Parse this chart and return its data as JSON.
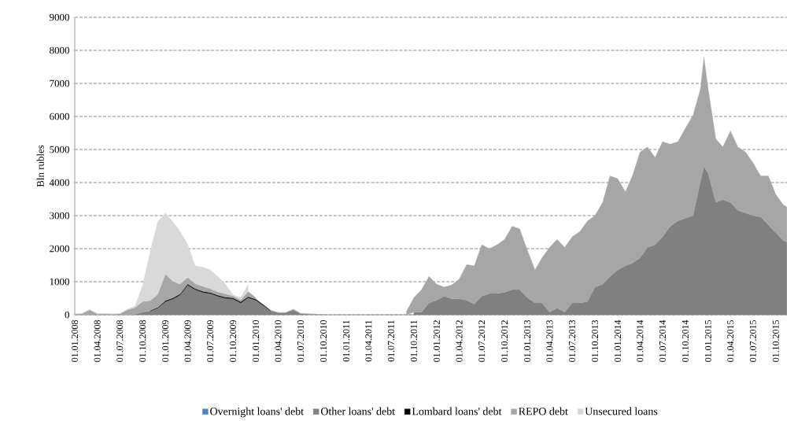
{
  "chart_data": {
    "type": "area",
    "stacked": true,
    "ylabel": "Bln rubles",
    "legend": "bottom",
    "grid": "y",
    "x": [
      "2008-01-01",
      "2008-02-01",
      "2008-03-01",
      "2008-04-01",
      "2008-05-01",
      "2008-06-01",
      "2008-07-01",
      "2008-08-01",
      "2008-09-01",
      "2008-10-01",
      "2008-11-01",
      "2008-12-01",
      "2009-01-01",
      "2009-02-01",
      "2009-03-01",
      "2009-04-01",
      "2009-05-01",
      "2009-06-01",
      "2009-07-01",
      "2009-08-01",
      "2009-09-01",
      "2009-10-01",
      "2009-11-01",
      "2009-12-01",
      "2010-01-01",
      "2010-02-01",
      "2010-03-01",
      "2010-04-01",
      "2010-05-01",
      "2010-06-01",
      "2010-07-01",
      "2010-08-01",
      "2010-09-01",
      "2010-10-01",
      "2010-11-01",
      "2010-12-01",
      "2011-01-01",
      "2011-02-01",
      "2011-03-01",
      "2011-04-01",
      "2011-05-01",
      "2011-06-01",
      "2011-07-01",
      "2011-08-01",
      "2011-09-01",
      "2011-10-01",
      "2011-11-01",
      "2011-12-01",
      "2012-01-01",
      "2012-02-01",
      "2012-03-01",
      "2012-04-01",
      "2012-05-01",
      "2012-06-01",
      "2012-07-01",
      "2012-08-01",
      "2012-09-01",
      "2012-10-01",
      "2012-11-01",
      "2012-12-01",
      "2013-01-01",
      "2013-02-01",
      "2013-03-01",
      "2013-04-01",
      "2013-05-01",
      "2013-06-01",
      "2013-07-01",
      "2013-08-01",
      "2013-09-01",
      "2013-10-01",
      "2013-11-01",
      "2013-12-01",
      "2014-01-01",
      "2014-02-01",
      "2014-03-01",
      "2014-04-01",
      "2014-05-01",
      "2014-06-01",
      "2014-07-01",
      "2014-08-01",
      "2014-09-01",
      "2014-10-01",
      "2014-11-01",
      "2014-12-01",
      "2014-12-15",
      "2015-01-01",
      "2015-02-01",
      "2015-03-01",
      "2015-04-01",
      "2015-05-01",
      "2015-06-01",
      "2015-07-01",
      "2015-08-01",
      "2015-09-01",
      "2015-10-01",
      "2015-11-01",
      "2015-11-15"
    ],
    "series": [
      {
        "name": "Overnight loans' debt",
        "color": "#4f81bd",
        "values": [
          null,
          null,
          null,
          null,
          null,
          null,
          null,
          null,
          null,
          null,
          null,
          null,
          null,
          null,
          null,
          null,
          null,
          null,
          null,
          null,
          null,
          null,
          null,
          null,
          null,
          null,
          null,
          null,
          null,
          null,
          null,
          null,
          null,
          null,
          null,
          null,
          null,
          null,
          null,
          null,
          null,
          null,
          null,
          null,
          null,
          null,
          null,
          null,
          null,
          null,
          null,
          null,
          null,
          null,
          null,
          null,
          null,
          null,
          null,
          null,
          null,
          null,
          null,
          null,
          null,
          null,
          null,
          null,
          null,
          null,
          null,
          null,
          null,
          null,
          null,
          null,
          null,
          null,
          null,
          null,
          null,
          null,
          null,
          null,
          null,
          null,
          null,
          null,
          null,
          null,
          null,
          null,
          null,
          null,
          null,
          null,
          null
        ]
      },
      {
        "name": "Other loans' debt",
        "color": "#808080",
        "values": [
          null,
          null,
          null,
          null,
          null,
          null,
          null,
          null,
          20,
          80,
          120,
          200,
          400,
          480,
          600,
          900,
          760,
          680,
          640,
          560,
          500,
          480,
          360,
          520,
          440,
          280,
          120,
          60,
          60,
          150,
          30,
          20,
          10,
          null,
          null,
          null,
          null,
          null,
          null,
          null,
          null,
          null,
          null,
          null,
          null,
          80,
          80,
          360,
          440,
          560,
          480,
          480,
          440,
          320,
          560,
          640,
          640,
          680,
          760,
          760,
          520,
          360,
          360,
          80,
          200,
          80,
          360,
          360,
          400,
          840,
          920,
          1160,
          1360,
          1480,
          1560,
          1720,
          2040,
          2120,
          2360,
          2680,
          2840,
          2920,
          3000,
          4040,
          4480,
          4280,
          3400,
          3480,
          3400,
          3160,
          3080,
          3000,
          2960,
          2720,
          2480,
          2240,
          2200
        ]
      },
      {
        "name": "Lombard loans' debt",
        "color": "#000000",
        "values": [
          null,
          null,
          null,
          null,
          null,
          null,
          null,
          null,
          null,
          null,
          10,
          20,
          30,
          30,
          30,
          30,
          30,
          30,
          30,
          30,
          30,
          30,
          30,
          30,
          30,
          20,
          10,
          null,
          null,
          null,
          null,
          null,
          null,
          null,
          null,
          null,
          null,
          null,
          null,
          null,
          null,
          null,
          null,
          null,
          null,
          null,
          null,
          null,
          null,
          null,
          null,
          null,
          null,
          null,
          null,
          null,
          null,
          null,
          null,
          null,
          null,
          null,
          null,
          null,
          null,
          null,
          null,
          null,
          null,
          null,
          null,
          null,
          null,
          null,
          null,
          null,
          null,
          null,
          null,
          null,
          null,
          null,
          null,
          null,
          null,
          null,
          null,
          null,
          null,
          null,
          null,
          null,
          null,
          null,
          null,
          null,
          null
        ]
      },
      {
        "name": "REPO debt",
        "color": "#a6a6a6",
        "values": [
          20,
          40,
          150,
          30,
          30,
          20,
          30,
          150,
          200,
          320,
          300,
          400,
          800,
          500,
          300,
          200,
          150,
          150,
          120,
          100,
          100,
          60,
          60,
          150,
          50,
          null,
          10,
          10,
          10,
          20,
          10,
          10,
          10,
          10,
          null,
          null,
          null,
          null,
          null,
          null,
          null,
          null,
          null,
          null,
          100,
          440,
          680,
          800,
          480,
          280,
          420,
          600,
          1080,
          1160,
          1560,
          1360,
          1480,
          1600,
          1920,
          1840,
          1440,
          1000,
          1360,
          1960,
          2080,
          1960,
          2000,
          2160,
          2440,
          2160,
          2480,
          3040,
          2760,
          2240,
          2640,
          3200,
          3040,
          2640,
          2880,
          2480,
          2400,
          2720,
          3040,
          2800,
          3320,
          2560,
          1920,
          1600,
          2160,
          1920,
          1840,
          1600,
          1240,
          1480,
          1160,
          1080,
          1060
        ]
      },
      {
        "name": "Unsecured loans",
        "color": "#d9d9d9",
        "values": [
          10,
          10,
          10,
          10,
          10,
          10,
          10,
          20,
          50,
          500,
          1500,
          2200,
          1850,
          1800,
          1600,
          1000,
          540,
          580,
          570,
          470,
          290,
          30,
          70,
          220,
          null,
          null,
          null,
          10,
          10,
          10,
          null,
          null,
          null,
          null,
          null,
          null,
          null,
          null,
          null,
          null,
          null,
          null,
          null,
          null,
          null,
          null,
          null,
          null,
          null,
          null,
          null,
          null,
          null,
          null,
          null,
          null,
          null,
          null,
          null,
          null,
          null,
          null,
          null,
          null,
          null,
          null,
          null,
          null,
          null,
          null,
          null,
          null,
          null,
          null,
          null,
          null,
          null,
          null,
          null,
          null,
          null,
          null,
          null,
          null,
          null,
          null,
          null,
          null,
          null,
          null,
          null,
          null,
          null,
          null,
          null,
          null,
          null
        ]
      }
    ],
    "xlim": [
      "2008-01-01",
      "2015-11-15"
    ],
    "xticks": [
      {
        "value": "2008-01-01",
        "label": "01.01.2008"
      },
      {
        "value": "2008-04-01",
        "label": "01.04.2008"
      },
      {
        "value": "2008-07-01",
        "label": "01.07.2008"
      },
      {
        "value": "2008-10-01",
        "label": "01.10.2008"
      },
      {
        "value": "2009-01-01",
        "label": "01.01.2009"
      },
      {
        "value": "2009-04-01",
        "label": "01.04.2009"
      },
      {
        "value": "2009-07-01",
        "label": "01.07.2009"
      },
      {
        "value": "2009-10-01",
        "label": "01.10.2009"
      },
      {
        "value": "2010-01-01",
        "label": "01.01.2010"
      },
      {
        "value": "2010-04-01",
        "label": "01.04.2010"
      },
      {
        "value": "2010-07-01",
        "label": "01.07.2010"
      },
      {
        "value": "2010-10-01",
        "label": "01.10.2010"
      },
      {
        "value": "2011-01-01",
        "label": "01.01.2011"
      },
      {
        "value": "2011-04-01",
        "label": "01.04.2011"
      },
      {
        "value": "2011-07-01",
        "label": "01.07.2011"
      },
      {
        "value": "2011-10-01",
        "label": "01.10.2011"
      },
      {
        "value": "2012-01-01",
        "label": "01.01.2012"
      },
      {
        "value": "2012-04-01",
        "label": "01.04.2012"
      },
      {
        "value": "2012-07-01",
        "label": "01.07.2012"
      },
      {
        "value": "2012-10-01",
        "label": "01.10.2012"
      },
      {
        "value": "2013-01-01",
        "label": "01.01.2013"
      },
      {
        "value": "2013-04-01",
        "label": "01.04.2013"
      },
      {
        "value": "2013-07-01",
        "label": "01.07.2013"
      },
      {
        "value": "2013-10-01",
        "label": "01.10.2013"
      },
      {
        "value": "2014-01-01",
        "label": "01.01.2014"
      },
      {
        "value": "2014-04-01",
        "label": "01.04.2014"
      },
      {
        "value": "2014-07-01",
        "label": "01.07.2014"
      },
      {
        "value": "2014-10-01",
        "label": "01.10.2014"
      },
      {
        "value": "2015-01-01",
        "label": "01.01.2015"
      },
      {
        "value": "2015-04-01",
        "label": "01.04.2015"
      },
      {
        "value": "2015-07-01",
        "label": "01.07.2015"
      },
      {
        "value": "2015-10-01",
        "label": "01.10.2015"
      }
    ],
    "ylim": [
      0,
      9000
    ],
    "yticks": [
      0,
      1000,
      2000,
      3000,
      4000,
      5000,
      6000,
      7000,
      8000,
      9000
    ]
  }
}
